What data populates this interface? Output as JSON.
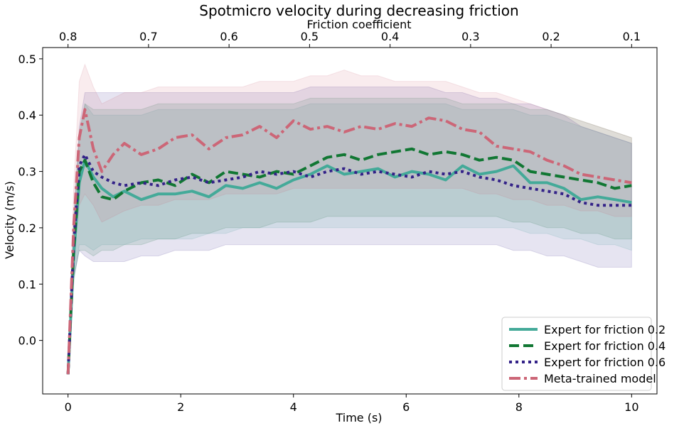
{
  "chart_data": {
    "type": "line",
    "title": "Spotmicro velocity during decreasing friction",
    "xlabel": "Time (s)",
    "ylabel": "Velocity (m/s)",
    "top_axis_label": "Friction coefficient",
    "xlim": [
      -0.45,
      10.45
    ],
    "ylim": [
      -0.095,
      0.52
    ],
    "x_ticks": [
      0,
      2,
      4,
      6,
      8,
      10
    ],
    "x_tick_labels": [
      "0",
      "2",
      "4",
      "6",
      "8",
      "10"
    ],
    "y_ticks": [
      0.0,
      0.1,
      0.2,
      0.3,
      0.4,
      0.5
    ],
    "y_tick_labels": [
      "0.0",
      "0.1",
      "0.2",
      "0.3",
      "0.4",
      "0.5"
    ],
    "top_ticks_at_time": [
      0,
      1.4286,
      2.8571,
      4.2857,
      5.7143,
      7.1429,
      8.5714,
      10
    ],
    "top_tick_labels": [
      "0.8",
      "0.7",
      "0.6",
      "0.5",
      "0.4",
      "0.3",
      "0.2",
      "0.1"
    ],
    "grid": false,
    "legend_position": "lower-right",
    "series": [
      {
        "name": "Expert for friction 0.2",
        "color": "#44aa99",
        "dash": "solid",
        "x": [
          0,
          0.1,
          0.2,
          0.3,
          0.45,
          0.6,
          0.8,
          1.0,
          1.3,
          1.6,
          1.9,
          2.2,
          2.5,
          2.8,
          3.1,
          3.4,
          3.7,
          4.0,
          4.3,
          4.6,
          4.9,
          5.2,
          5.5,
          5.8,
          6.1,
          6.4,
          6.7,
          7.0,
          7.3,
          7.6,
          7.9,
          8.2,
          8.5,
          8.8,
          9.1,
          9.4,
          9.7,
          10.0
        ],
        "y": [
          -0.06,
          0.15,
          0.28,
          0.32,
          0.29,
          0.27,
          0.255,
          0.265,
          0.25,
          0.26,
          0.26,
          0.265,
          0.255,
          0.275,
          0.27,
          0.28,
          0.27,
          0.285,
          0.295,
          0.31,
          0.295,
          0.3,
          0.305,
          0.29,
          0.3,
          0.295,
          0.285,
          0.31,
          0.295,
          0.3,
          0.31,
          0.28,
          0.28,
          0.27,
          0.25,
          0.255,
          0.25,
          0.245
        ]
      },
      {
        "name": "Expert for friction 0.4",
        "color": "#117733",
        "dash": "dashed",
        "x": [
          0,
          0.1,
          0.2,
          0.3,
          0.45,
          0.6,
          0.8,
          1.0,
          1.3,
          1.6,
          1.9,
          2.2,
          2.5,
          2.8,
          3.1,
          3.4,
          3.7,
          4.0,
          4.3,
          4.6,
          4.9,
          5.2,
          5.5,
          5.8,
          6.1,
          6.4,
          6.7,
          7.0,
          7.3,
          7.6,
          7.9,
          8.2,
          8.5,
          8.8,
          9.1,
          9.4,
          9.7,
          10.0
        ],
        "y": [
          -0.06,
          0.16,
          0.3,
          0.32,
          0.28,
          0.255,
          0.25,
          0.265,
          0.28,
          0.285,
          0.275,
          0.295,
          0.28,
          0.3,
          0.295,
          0.29,
          0.3,
          0.295,
          0.31,
          0.325,
          0.33,
          0.32,
          0.33,
          0.335,
          0.34,
          0.33,
          0.335,
          0.33,
          0.32,
          0.325,
          0.32,
          0.3,
          0.295,
          0.29,
          0.285,
          0.28,
          0.27,
          0.275
        ]
      },
      {
        "name": "Expert for friction 0.6",
        "color": "#332288",
        "dash": "dotted",
        "x": [
          0,
          0.1,
          0.2,
          0.3,
          0.45,
          0.6,
          0.8,
          1.0,
          1.3,
          1.6,
          1.9,
          2.2,
          2.5,
          2.8,
          3.1,
          3.4,
          3.7,
          4.0,
          4.3,
          4.6,
          4.9,
          5.2,
          5.5,
          5.8,
          6.1,
          6.4,
          6.7,
          7.0,
          7.3,
          7.6,
          7.9,
          8.2,
          8.5,
          8.8,
          9.1,
          9.4,
          9.7,
          10.0
        ],
        "y": [
          -0.06,
          0.17,
          0.31,
          0.33,
          0.3,
          0.29,
          0.28,
          0.275,
          0.28,
          0.275,
          0.285,
          0.29,
          0.28,
          0.285,
          0.29,
          0.3,
          0.295,
          0.3,
          0.29,
          0.3,
          0.305,
          0.295,
          0.3,
          0.295,
          0.29,
          0.3,
          0.295,
          0.3,
          0.29,
          0.285,
          0.275,
          0.27,
          0.265,
          0.26,
          0.245,
          0.24,
          0.24,
          0.24
        ]
      },
      {
        "name": "Meta-trained model",
        "color": "#cc6677",
        "dash": "dashdot",
        "x": [
          0,
          0.1,
          0.2,
          0.3,
          0.45,
          0.6,
          0.8,
          1.0,
          1.3,
          1.6,
          1.9,
          2.2,
          2.5,
          2.8,
          3.1,
          3.4,
          3.7,
          4.0,
          4.3,
          4.6,
          4.9,
          5.2,
          5.5,
          5.8,
          6.1,
          6.4,
          6.7,
          7.0,
          7.3,
          7.6,
          7.9,
          8.2,
          8.5,
          8.8,
          9.1,
          9.4,
          9.7,
          10.0
        ],
        "y": [
          -0.06,
          0.2,
          0.36,
          0.41,
          0.34,
          0.3,
          0.33,
          0.35,
          0.33,
          0.34,
          0.36,
          0.365,
          0.34,
          0.36,
          0.365,
          0.38,
          0.36,
          0.39,
          0.375,
          0.38,
          0.37,
          0.38,
          0.375,
          0.385,
          0.38,
          0.395,
          0.39,
          0.375,
          0.37,
          0.345,
          0.34,
          0.335,
          0.32,
          0.31,
          0.295,
          0.29,
          0.285,
          0.28
        ]
      }
    ],
    "bands": [
      {
        "color": "#44aa99",
        "lower": [
          -0.06,
          0.1,
          0.17,
          0.17,
          0.16,
          0.17,
          0.17,
          0.17,
          0.18,
          0.18,
          0.18,
          0.18,
          0.19,
          0.19,
          0.2,
          0.2,
          0.2,
          0.2,
          0.2,
          0.2,
          0.2,
          0.2,
          0.2,
          0.2,
          0.2,
          0.2,
          0.2,
          0.2,
          0.2,
          0.2,
          0.2,
          0.19,
          0.19,
          0.18,
          0.18,
          0.17,
          0.17,
          0.16
        ],
        "upper": [
          -0.06,
          0.2,
          0.36,
          0.42,
          0.4,
          0.4,
          0.4,
          0.4,
          0.4,
          0.41,
          0.41,
          0.41,
          0.41,
          0.41,
          0.41,
          0.41,
          0.41,
          0.41,
          0.42,
          0.42,
          0.42,
          0.42,
          0.42,
          0.42,
          0.42,
          0.42,
          0.42,
          0.41,
          0.41,
          0.41,
          0.41,
          0.4,
          0.4,
          0.39,
          0.38,
          0.37,
          0.36,
          0.35
        ]
      },
      {
        "color": "#117733",
        "lower": [
          -0.06,
          0.11,
          0.16,
          0.16,
          0.15,
          0.16,
          0.16,
          0.17,
          0.17,
          0.18,
          0.18,
          0.19,
          0.19,
          0.2,
          0.2,
          0.2,
          0.21,
          0.21,
          0.21,
          0.22,
          0.22,
          0.22,
          0.22,
          0.22,
          0.22,
          0.22,
          0.22,
          0.22,
          0.22,
          0.22,
          0.21,
          0.21,
          0.2,
          0.2,
          0.19,
          0.19,
          0.18,
          0.18
        ],
        "upper": [
          -0.06,
          0.21,
          0.37,
          0.42,
          0.41,
          0.41,
          0.41,
          0.41,
          0.41,
          0.42,
          0.42,
          0.42,
          0.42,
          0.42,
          0.42,
          0.42,
          0.42,
          0.42,
          0.43,
          0.43,
          0.43,
          0.43,
          0.43,
          0.43,
          0.43,
          0.43,
          0.43,
          0.42,
          0.42,
          0.42,
          0.42,
          0.41,
          0.41,
          0.4,
          0.39,
          0.38,
          0.37,
          0.36
        ]
      },
      {
        "color": "#332288",
        "lower": [
          -0.06,
          0.11,
          0.16,
          0.15,
          0.14,
          0.14,
          0.14,
          0.14,
          0.15,
          0.15,
          0.16,
          0.16,
          0.16,
          0.17,
          0.17,
          0.17,
          0.17,
          0.17,
          0.17,
          0.17,
          0.17,
          0.17,
          0.17,
          0.17,
          0.17,
          0.17,
          0.17,
          0.17,
          0.17,
          0.17,
          0.16,
          0.16,
          0.15,
          0.15,
          0.14,
          0.13,
          0.13,
          0.13
        ],
        "upper": [
          -0.06,
          0.22,
          0.38,
          0.44,
          0.44,
          0.44,
          0.44,
          0.44,
          0.44,
          0.44,
          0.44,
          0.44,
          0.44,
          0.44,
          0.44,
          0.44,
          0.44,
          0.44,
          0.45,
          0.45,
          0.45,
          0.45,
          0.45,
          0.45,
          0.45,
          0.45,
          0.44,
          0.44,
          0.43,
          0.43,
          0.42,
          0.42,
          0.41,
          0.4,
          0.38,
          0.37,
          0.36,
          0.35
        ]
      },
      {
        "color": "#cc6677",
        "lower": [
          -0.06,
          0.14,
          0.24,
          0.26,
          0.24,
          0.21,
          0.22,
          0.23,
          0.24,
          0.24,
          0.25,
          0.25,
          0.25,
          0.26,
          0.26,
          0.26,
          0.26,
          0.27,
          0.27,
          0.27,
          0.27,
          0.27,
          0.27,
          0.27,
          0.27,
          0.27,
          0.27,
          0.27,
          0.26,
          0.26,
          0.25,
          0.25,
          0.24,
          0.24,
          0.23,
          0.23,
          0.22,
          0.22
        ],
        "upper": [
          -0.06,
          0.27,
          0.46,
          0.49,
          0.45,
          0.42,
          0.43,
          0.44,
          0.44,
          0.45,
          0.45,
          0.45,
          0.45,
          0.45,
          0.45,
          0.46,
          0.46,
          0.46,
          0.47,
          0.47,
          0.48,
          0.47,
          0.47,
          0.46,
          0.46,
          0.46,
          0.46,
          0.45,
          0.44,
          0.44,
          0.43,
          0.42,
          0.41,
          0.4,
          0.39,
          0.38,
          0.37,
          0.36
        ]
      }
    ]
  }
}
